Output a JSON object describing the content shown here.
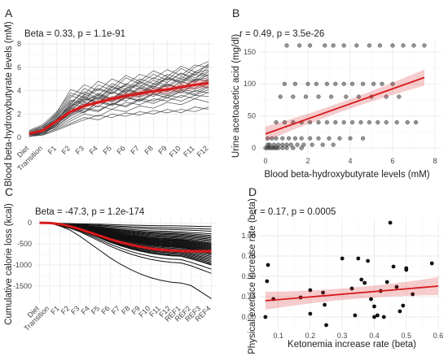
{
  "chart_data": [
    {
      "panel": "A",
      "type": "line",
      "stat": "Beta = 0.33, p = 1.1e-91",
      "ylabel": "Blood beta-hydroxybutyrate levels (mM)",
      "xlabel": "",
      "categories": [
        "Diet",
        "Transition",
        "F1",
        "F2",
        "F3",
        "F4",
        "F5",
        "F6",
        "F7",
        "F8",
        "F9",
        "F10",
        "F11",
        "F12"
      ],
      "ylim": [
        0,
        8
      ],
      "yticks": [
        0,
        2,
        4,
        6,
        8
      ],
      "trend": [
        0.3,
        0.6,
        1.4,
        2.2,
        2.7,
        3.0,
        3.3,
        3.55,
        3.75,
        3.95,
        4.1,
        4.3,
        4.5,
        4.65
      ],
      "trend_color": "#d7191c",
      "series": [
        {
          "values": [
            0.2,
            0.5,
            1.3,
            2.5,
            3.5,
            3.0,
            4.1,
            4.4,
            3.6,
            4.5,
            5.0,
            4.8,
            5.6,
            5.3
          ]
        },
        {
          "values": [
            0.4,
            0.8,
            1.8,
            3.2,
            3.0,
            3.8,
            3.3,
            4.2,
            4.5,
            3.9,
            4.7,
            5.5,
            4.9,
            6.1
          ]
        },
        {
          "values": [
            0.1,
            0.3,
            1.0,
            1.8,
            2.4,
            2.2,
            2.9,
            2.7,
            3.3,
            3.1,
            3.6,
            3.4,
            4.0,
            3.8
          ]
        },
        {
          "values": [
            0.3,
            0.6,
            1.5,
            2.8,
            4.2,
            3.6,
            4.6,
            4.1,
            5.0,
            4.6,
            5.4,
            5.0,
            6.0,
            6.5
          ]
        },
        {
          "values": [
            0.2,
            0.4,
            1.2,
            2.0,
            2.8,
            3.4,
            3.0,
            3.7,
            3.4,
            4.0,
            3.7,
            4.3,
            4.1,
            4.6
          ]
        },
        {
          "values": [
            0.5,
            0.9,
            2.0,
            3.6,
            3.1,
            4.5,
            4.0,
            5.1,
            4.6,
            5.4,
            4.9,
            5.9,
            5.3,
            6.3
          ]
        },
        {
          "values": [
            0.1,
            0.2,
            0.8,
            1.4,
            2.0,
            1.8,
            2.4,
            2.2,
            2.7,
            2.5,
            3.0,
            2.8,
            3.3,
            3.0
          ]
        },
        {
          "values": [
            0.3,
            0.7,
            1.6,
            2.6,
            3.3,
            2.9,
            3.9,
            3.5,
            4.3,
            3.9,
            4.5,
            4.2,
            4.9,
            5.1
          ]
        },
        {
          "values": [
            0.2,
            0.5,
            1.1,
            2.3,
            2.1,
            3.1,
            2.8,
            3.5,
            3.2,
            3.8,
            3.6,
            4.1,
            3.9,
            4.4
          ]
        },
        {
          "values": [
            0.4,
            0.6,
            1.4,
            3.0,
            3.9,
            3.3,
            4.4,
            3.9,
            4.8,
            4.3,
            5.2,
            4.7,
            5.5,
            5.8
          ]
        },
        {
          "values": [
            0.1,
            0.4,
            0.9,
            1.6,
            2.2,
            2.7,
            2.4,
            3.0,
            2.8,
            3.3,
            3.1,
            3.6,
            3.3,
            3.9
          ]
        },
        {
          "values": [
            0.3,
            0.5,
            1.7,
            2.9,
            2.6,
            3.7,
            3.2,
            4.0,
            3.7,
            4.4,
            4.0,
            4.8,
            4.4,
            5.0
          ]
        },
        {
          "values": [
            0.2,
            0.3,
            1.2,
            2.1,
            3.0,
            2.6,
            3.5,
            3.1,
            3.9,
            3.5,
            4.2,
            3.8,
            4.6,
            4.2
          ]
        },
        {
          "values": [
            0.5,
            1.0,
            1.9,
            3.4,
            4.5,
            4.0,
            5.0,
            4.5,
            5.4,
            5.0,
            5.8,
            5.3,
            6.2,
            6.0
          ]
        },
        {
          "values": [
            0.2,
            0.4,
            1.0,
            1.9,
            2.5,
            2.3,
            2.9,
            2.6,
            3.2,
            2.9,
            3.4,
            3.1,
            3.6,
            3.5
          ]
        },
        {
          "values": [
            0.3,
            0.6,
            1.3,
            2.4,
            3.2,
            3.6,
            3.3,
            4.1,
            3.8,
            4.6,
            4.3,
            5.0,
            4.7,
            5.4
          ]
        },
        {
          "values": [
            0.1,
            0.3,
            0.7,
            1.2,
            1.7,
            1.5,
            2.0,
            1.8,
            2.2,
            2.0,
            2.4,
            2.1,
            2.6,
            2.4
          ]
        },
        {
          "values": [
            0.4,
            0.8,
            1.6,
            2.7,
            3.6,
            4.2,
            3.8,
            4.6,
            4.3,
            5.1,
            4.7,
            5.5,
            5.1,
            5.7
          ]
        },
        {
          "values": [
            0.2,
            0.5,
            1.4,
            2.5,
            2.2,
            3.0,
            2.7,
            3.4,
            3.1,
            3.7,
            3.4,
            4.0,
            3.7,
            4.3
          ]
        },
        {
          "values": [
            0.3,
            0.4,
            1.1,
            2.2,
            3.4,
            2.9,
            3.9,
            3.4,
            4.2,
            3.8,
            4.6,
            4.1,
            5.0,
            4.8
          ]
        },
        {
          "values": [
            0.6,
            1.1,
            2.2,
            3.8,
            3.4,
            4.1,
            3.7,
            4.5,
            4.1,
            4.9,
            4.4,
            5.2,
            4.8,
            5.6
          ]
        },
        {
          "values": [
            0.1,
            0.2,
            0.6,
            1.1,
            1.5,
            1.9,
            1.7,
            2.1,
            1.9,
            2.3,
            2.1,
            2.4,
            2.2,
            2.6
          ]
        },
        {
          "values": [
            0.4,
            0.7,
            1.8,
            3.1,
            2.8,
            3.5,
            3.1,
            3.8,
            3.5,
            4.2,
            3.9,
            4.5,
            4.2,
            4.9
          ]
        },
        {
          "values": [
            0.2,
            0.6,
            1.5,
            2.6,
            3.7,
            3.2,
            4.3,
            3.8,
            4.7,
            4.2,
            5.1,
            4.6,
            5.4,
            5.2
          ]
        },
        {
          "values": [
            0.3,
            0.5,
            1.2,
            2.0,
            2.6,
            3.1,
            2.8,
            3.4,
            3.1,
            3.7,
            3.4,
            3.9,
            3.6,
            4.1
          ]
        },
        {
          "values": [
            0.5,
            0.9,
            2.1,
            4.1,
            3.7,
            4.8,
            4.3,
            5.3,
            4.8,
            5.7,
            5.2,
            6.1,
            5.6,
            6.2
          ]
        }
      ]
    },
    {
      "panel": "B",
      "type": "scatter",
      "stat": "r = 0.49, p = 3.5e-26",
      "xlabel": "Blood beta-hydroxybutyrate levels (mM)",
      "ylabel": "Urine acetoacetic acid (mg/dl)",
      "xlim": [
        0,
        8
      ],
      "ylim": [
        -5,
        165
      ],
      "xticks": [
        0,
        2,
        4,
        6,
        8
      ],
      "yticks": [
        0,
        50,
        100,
        150
      ],
      "fit": {
        "x": [
          0,
          7.5
        ],
        "y": [
          22,
          110
        ]
      },
      "trend_color": "#d7191c",
      "bands": [
        {
          "y": 160,
          "x": [
            1.0,
            1.6,
            2.1,
            2.8,
            3.2,
            3.7,
            4.3,
            4.9,
            5.4,
            6.0,
            6.5,
            7.0,
            7.5
          ]
        },
        {
          "y": 100,
          "x": [
            0.9,
            1.4,
            2.0,
            2.4,
            2.9,
            3.3,
            3.7,
            4.1,
            4.6,
            5.1,
            5.5,
            6.0
          ]
        },
        {
          "y": 80,
          "x": [
            0.7,
            1.3,
            1.9,
            2.5,
            3.1,
            3.8,
            4.4,
            5.0,
            5.7,
            6.3
          ]
        },
        {
          "y": 40,
          "x": [
            0.5,
            0.9,
            1.3,
            1.7,
            2.1,
            2.5,
            2.9,
            3.3,
            3.7,
            4.1,
            4.5,
            4.9,
            5.3,
            5.7,
            6.2,
            6.7,
            7.1
          ]
        },
        {
          "y": 15,
          "x": [
            0.1,
            0.3,
            0.5,
            0.8,
            1.1,
            1.4,
            1.7,
            2.1,
            2.5,
            3.0,
            3.5,
            4.0,
            4.6
          ]
        },
        {
          "y": 5,
          "x": [
            0.1,
            0.2,
            0.4,
            0.6,
            0.8,
            1.0,
            1.2,
            1.5,
            1.8,
            2.2,
            2.7,
            3.2
          ]
        },
        {
          "y": 0,
          "x": [
            0.0,
            0.1,
            0.2,
            0.3,
            0.4,
            0.5,
            0.6,
            0.8,
            1.0,
            1.3,
            1.7
          ]
        }
      ]
    },
    {
      "panel": "C",
      "type": "line",
      "stat": "Beta = -47.3, p = 1.2e-174",
      "ylabel": "Cumulative calorie loss (kcal)",
      "xlabel": "",
      "categories": [
        "Diet",
        "Transition",
        "F1",
        "F2",
        "F3",
        "F4",
        "F5",
        "F6",
        "F7",
        "F8",
        "F9",
        "F10",
        "F11",
        "F12",
        "REF1",
        "REF2",
        "REF3",
        "REF4"
      ],
      "ylim": [
        -1850,
        80
      ],
      "yticks": [
        0,
        -500,
        -1000,
        -1500
      ],
      "trend": [
        0,
        -5,
        -30,
        -80,
        -150,
        -230,
        -310,
        -390,
        -460,
        -520,
        -570,
        -610,
        -640,
        -660,
        -670,
        -675,
        -675,
        -675
      ],
      "trend_color": "#d7191c",
      "end_values": [
        -90,
        -150,
        -200,
        -260,
        -300,
        -330,
        -360,
        -390,
        -420,
        -450,
        -480,
        -500,
        -520,
        -540,
        -560,
        -580,
        -600,
        -620,
        -640,
        -660,
        -680,
        -700,
        -720,
        -740,
        -770,
        -800,
        -830,
        -860,
        -890,
        -920,
        -950,
        -980,
        -1000,
        -1100,
        -1200,
        -1800
      ]
    },
    {
      "panel": "D",
      "type": "scatter",
      "stat": "r = 0.17, p = 0.0005",
      "xlabel": "Ketonemia increase rate (beta)",
      "ylabel": "Physical exercice increase rate (beta)",
      "xlim": [
        0.04,
        0.61
      ],
      "ylim": [
        -0.15,
        1.22
      ],
      "xticks": [
        0.1,
        0.2,
        0.3,
        0.4,
        0.5,
        0.6
      ],
      "yticks": [
        0.0,
        0.25,
        0.5,
        0.75,
        1.0
      ],
      "fit": {
        "x": [
          0.06,
          0.6
        ],
        "y": [
          0.2,
          0.38
        ]
      },
      "trend_color": "#d7191c",
      "points": [
        {
          "x": 0.06,
          "y": 0.0
        },
        {
          "x": 0.065,
          "y": 0.44
        },
        {
          "x": 0.068,
          "y": 0.64
        },
        {
          "x": 0.085,
          "y": 0.22
        },
        {
          "x": 0.17,
          "y": 0.24
        },
        {
          "x": 0.2,
          "y": 0.33
        },
        {
          "x": 0.2,
          "y": 0.04
        },
        {
          "x": 0.24,
          "y": 0.3
        },
        {
          "x": 0.245,
          "y": 0.15
        },
        {
          "x": 0.25,
          "y": -0.1
        },
        {
          "x": 0.3,
          "y": 0.72
        },
        {
          "x": 0.33,
          "y": 0.35
        },
        {
          "x": 0.34,
          "y": 0.02
        },
        {
          "x": 0.35,
          "y": 0.72
        },
        {
          "x": 0.36,
          "y": 0.46
        },
        {
          "x": 0.37,
          "y": 0.42
        },
        {
          "x": 0.38,
          "y": 0.69
        },
        {
          "x": 0.39,
          "y": 0.22
        },
        {
          "x": 0.4,
          "y": 0.13
        },
        {
          "x": 0.4,
          "y": 0.0
        },
        {
          "x": 0.41,
          "y": 0.02
        },
        {
          "x": 0.42,
          "y": 0.32
        },
        {
          "x": 0.43,
          "y": 0.0
        },
        {
          "x": 0.44,
          "y": 0.43
        },
        {
          "x": 0.45,
          "y": 1.16
        },
        {
          "x": 0.46,
          "y": 0.62
        },
        {
          "x": 0.47,
          "y": 0.37
        },
        {
          "x": 0.48,
          "y": 0.07
        },
        {
          "x": 0.49,
          "y": 0.14
        },
        {
          "x": 0.5,
          "y": 0.58
        },
        {
          "x": 0.5,
          "y": 0.6
        },
        {
          "x": 0.52,
          "y": 0.28
        },
        {
          "x": 0.58,
          "y": 0.66
        }
      ]
    }
  ]
}
